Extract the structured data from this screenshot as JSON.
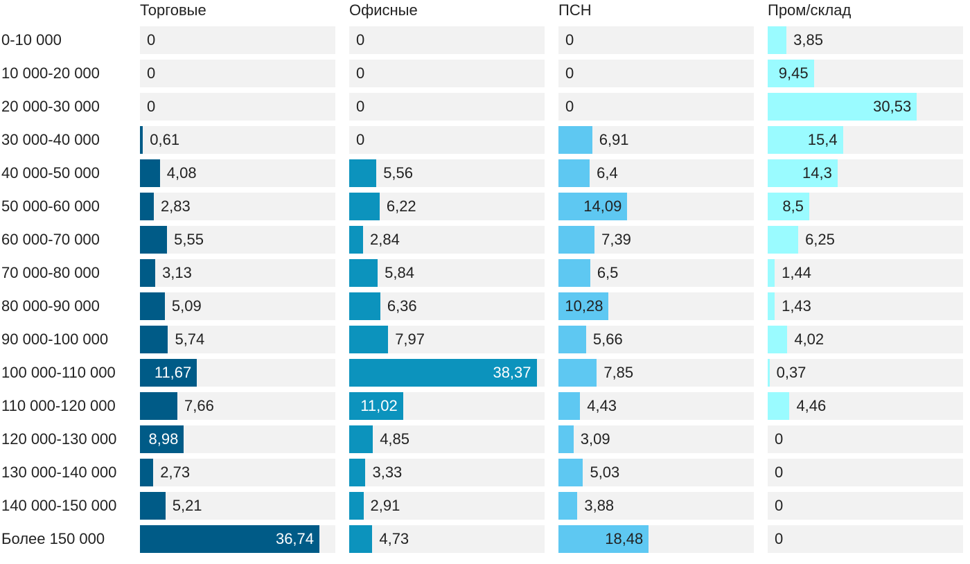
{
  "chart_data": {
    "type": "bar",
    "orientation": "horizontal",
    "layout": "small-multiples",
    "categories": [
      "0-10 000",
      "10 000-20 000",
      "20 000-30 000",
      "30 000-40 000",
      "40 000-50 000",
      "50 000-60 000",
      "60 000-70 000",
      "70 000-80 000",
      "80 000-90 000",
      "90 000-100 000",
      "100 000-110 000",
      "110 000-120 000",
      "120 000-130 000",
      "130 000-140 000",
      "140 000-150 000",
      "Более 150 000"
    ],
    "series": [
      {
        "name": "Торговые",
        "color": "#005b87",
        "values": [
          0,
          0,
          0,
          0.61,
          4.08,
          2.83,
          5.55,
          3.13,
          5.09,
          5.74,
          11.67,
          7.66,
          8.98,
          2.73,
          5.21,
          36.74
        ],
        "labels": [
          "0",
          "0",
          "0",
          "0,61",
          "4,08",
          "2,83",
          "5,55",
          "3,13",
          "5,09",
          "5,74",
          "11,67",
          "7,66",
          "8,98",
          "2,73",
          "5,21",
          "36,74"
        ]
      },
      {
        "name": "Офисные",
        "color": "#0c93bd",
        "values": [
          0,
          0,
          0,
          0,
          5.56,
          6.22,
          2.84,
          5.84,
          6.36,
          7.97,
          38.37,
          11.02,
          4.85,
          3.33,
          2.91,
          4.73
        ],
        "labels": [
          "0",
          "0",
          "0",
          "0",
          "5,56",
          "6,22",
          "2,84",
          "5,84",
          "6,36",
          "7,97",
          "38,37",
          "11,02",
          "4,85",
          "3,33",
          "2,91",
          "4,73"
        ]
      },
      {
        "name": "ПСН",
        "color": "#5ec8f2",
        "values": [
          0,
          0,
          0,
          6.91,
          6.4,
          14.09,
          7.39,
          6.5,
          10.28,
          5.66,
          7.85,
          4.43,
          3.09,
          5.03,
          3.88,
          18.48
        ],
        "labels": [
          "0",
          "0",
          "0",
          "6,91",
          "6,4",
          "14,09",
          "7,39",
          "6,5",
          "10,28",
          "5,66",
          "7,85",
          "4,43",
          "3,09",
          "5,03",
          "3,88",
          "18,48"
        ]
      },
      {
        "name": "Пром/склад",
        "color": "#9afbff",
        "values": [
          3.85,
          9.45,
          30.53,
          15.4,
          14.3,
          8.5,
          6.25,
          1.44,
          1.43,
          4.02,
          0.37,
          4.46,
          0,
          0,
          0,
          0
        ],
        "labels": [
          "3,85",
          "9,45",
          "30,53",
          "15,4",
          "14,3",
          "8,5",
          "6,25",
          "1,44",
          "1,43",
          "4,02",
          "0,37",
          "4,46",
          "0",
          "0",
          "0",
          "0"
        ]
      }
    ],
    "xlim": [
      0,
      40
    ],
    "track_color": "#f2f2f2",
    "grid": false,
    "legend": "none",
    "value_labels": "inside-end when bar is long, otherwise after bar"
  }
}
